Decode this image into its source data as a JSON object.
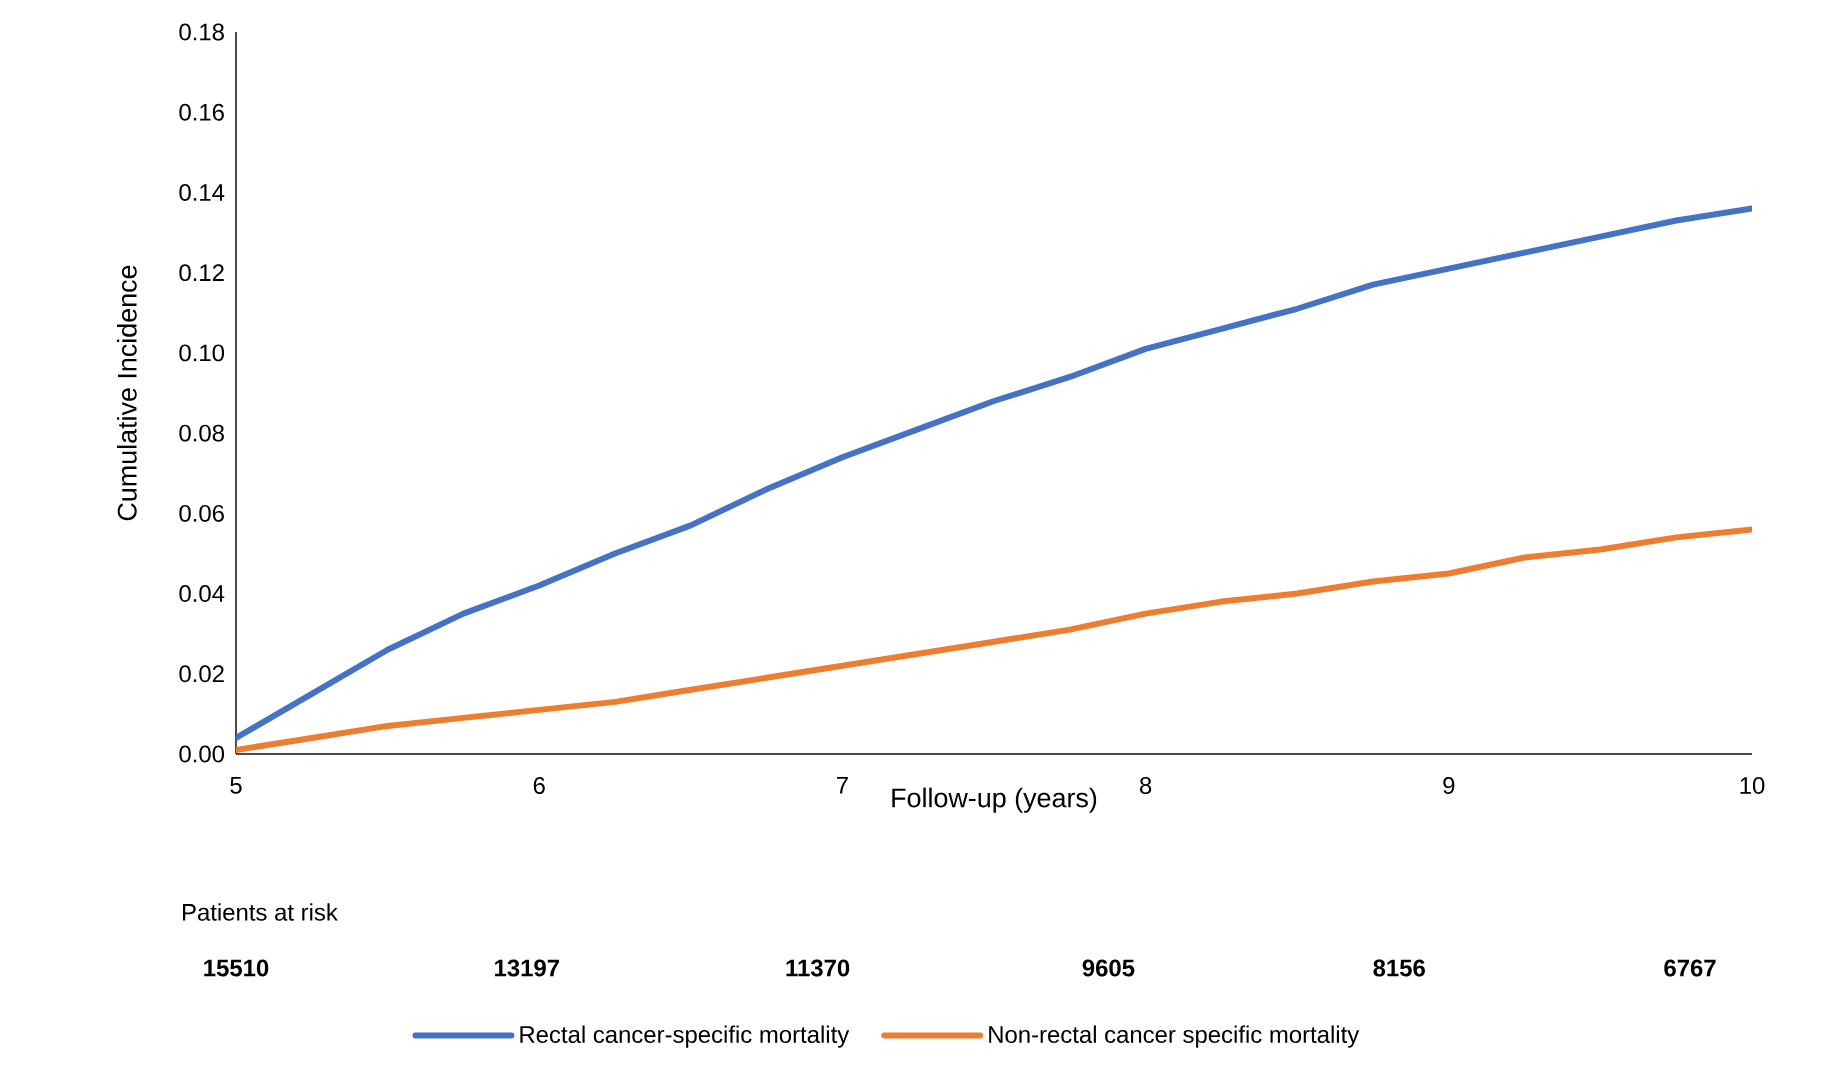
{
  "chart_data": {
    "type": "line",
    "xlabel": "Follow-up (years)",
    "ylabel": "Cumulative Incidence",
    "x": [
      5,
      5.25,
      5.5,
      5.75,
      6,
      6.25,
      6.5,
      6.75,
      7,
      7.25,
      7.5,
      7.75,
      8,
      8.25,
      8.5,
      8.75,
      9,
      9.25,
      9.5,
      9.75,
      10
    ],
    "series": [
      {
        "name": "Rectal cancer-specific mortality",
        "color": "#4472c4",
        "values": [
          0.004,
          0.015,
          0.026,
          0.035,
          0.042,
          0.05,
          0.057,
          0.066,
          0.074,
          0.081,
          0.088,
          0.094,
          0.101,
          0.106,
          0.111,
          0.117,
          0.121,
          0.125,
          0.129,
          0.133,
          0.136
        ]
      },
      {
        "name": "Non-rectal cancer specific mortality",
        "color": "#ed7d31",
        "values": [
          0.001,
          0.004,
          0.007,
          0.009,
          0.011,
          0.013,
          0.016,
          0.019,
          0.022,
          0.025,
          0.028,
          0.031,
          0.035,
          0.038,
          0.04,
          0.043,
          0.045,
          0.049,
          0.051,
          0.054,
          0.056
        ]
      }
    ],
    "xlim": [
      5,
      10
    ],
    "xticks": [
      5,
      6,
      7,
      8,
      9,
      10
    ],
    "ylim": [
      0,
      0.18
    ],
    "yticks": [
      {
        "value": 0,
        "label": "0.00"
      },
      {
        "value": 0.02,
        "label": "0.02"
      },
      {
        "value": 0.04,
        "label": "0.04"
      },
      {
        "value": 0.06,
        "label": "0.06"
      },
      {
        "value": 0.08,
        "label": "0.08"
      },
      {
        "value": 0.1,
        "label": "0.10"
      },
      {
        "value": 0.12,
        "label": "0.12"
      },
      {
        "value": 0.14,
        "label": "0.14"
      },
      {
        "value": 0.16,
        "label": "0.16"
      },
      {
        "value": 0.18,
        "label": "0.18"
      }
    ],
    "annotations": [
      "Patients at risk",
      "15510",
      "13197",
      "11370",
      "9605",
      "8156",
      "6767"
    ],
    "legend": "bottom",
    "grid": false,
    "marker": "none",
    "line_style": "solid"
  }
}
